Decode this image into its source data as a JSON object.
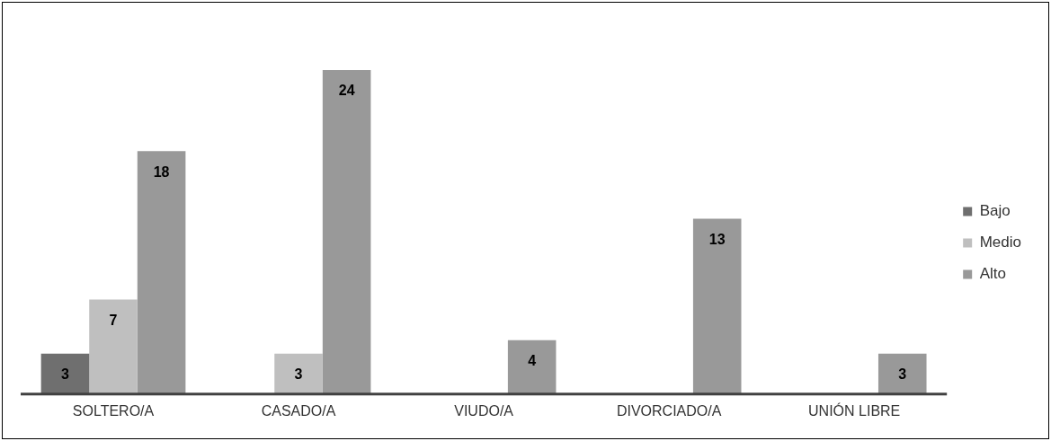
{
  "chart_data": {
    "type": "bar",
    "categories": [
      "SOLTERO/A",
      "CASADO/A",
      "VIUDO/A",
      "DIVORCIADO/A",
      "UNIÓN LIBRE"
    ],
    "series": [
      {
        "name": "Bajo",
        "color": "#6f6f6f",
        "values": [
          3,
          null,
          null,
          null,
          null
        ]
      },
      {
        "name": "Medio",
        "color": "#bfbfbf",
        "values": [
          7,
          3,
          null,
          null,
          null
        ]
      },
      {
        "name": "Alto",
        "color": "#999999",
        "values": [
          18,
          24,
          4,
          13,
          3
        ]
      }
    ],
    "data_labels": true,
    "legend": "right",
    "grid": false
  }
}
